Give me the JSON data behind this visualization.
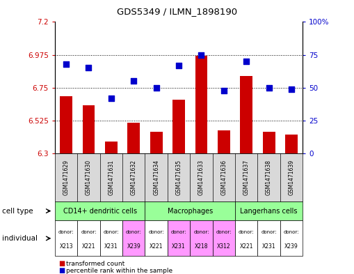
{
  "title": "GDS5349 / ILMN_1898190",
  "samples": [
    "GSM1471629",
    "GSM1471630",
    "GSM1471631",
    "GSM1471632",
    "GSM1471634",
    "GSM1471635",
    "GSM1471633",
    "GSM1471636",
    "GSM1471637",
    "GSM1471638",
    "GSM1471639"
  ],
  "bar_values": [
    6.69,
    6.63,
    6.38,
    6.51,
    6.45,
    6.67,
    6.97,
    6.46,
    6.83,
    6.45,
    6.43
  ],
  "dot_values": [
    68,
    65,
    42,
    55,
    50,
    67,
    75,
    48,
    70,
    50,
    49
  ],
  "ymin": 6.3,
  "ymax": 7.2,
  "y2min": 0,
  "y2max": 100,
  "yticks": [
    6.3,
    6.525,
    6.75,
    6.975,
    7.2
  ],
  "ytick_labels": [
    "6.3",
    "6.525",
    "6.75",
    "6.975",
    "7.2"
  ],
  "y2ticks": [
    0,
    25,
    50,
    75,
    100
  ],
  "y2tick_labels": [
    "0",
    "25",
    "50",
    "75",
    "100%"
  ],
  "bar_color": "#cc0000",
  "dot_color": "#0000cc",
  "dotted_line_y": [
    6.525,
    6.75,
    6.975
  ],
  "cell_type_groups": [
    {
      "label": "CD14+ dendritic cells",
      "indices": [
        0,
        1,
        2,
        3
      ],
      "color": "#99ff99"
    },
    {
      "label": "Macrophages",
      "indices": [
        4,
        5,
        6,
        7
      ],
      "color": "#99ff99"
    },
    {
      "label": "Langerhans cells",
      "indices": [
        8,
        9,
        10
      ],
      "color": "#99ff99"
    }
  ],
  "donors": [
    "X213",
    "X221",
    "X231",
    "X239",
    "X221",
    "X231",
    "X218",
    "X312",
    "X221",
    "X231",
    "X239"
  ],
  "donor_colors": [
    "#ffffff",
    "#ffffff",
    "#ffffff",
    "#ff99ff",
    "#ffffff",
    "#ff99ff",
    "#ff99ff",
    "#ff99ff",
    "#ffffff",
    "#ffffff",
    "#ffffff"
  ],
  "cell_type_label": "cell type",
  "individual_label": "individual",
  "legend_bar_label": "transformed count",
  "legend_dot_label": "percentile rank within the sample",
  "bg_color": "#ffffff",
  "axis_color_left": "#cc0000",
  "axis_color_right": "#0000cc",
  "sample_label_bg": "#d9d9d9",
  "border_color": "#000000"
}
